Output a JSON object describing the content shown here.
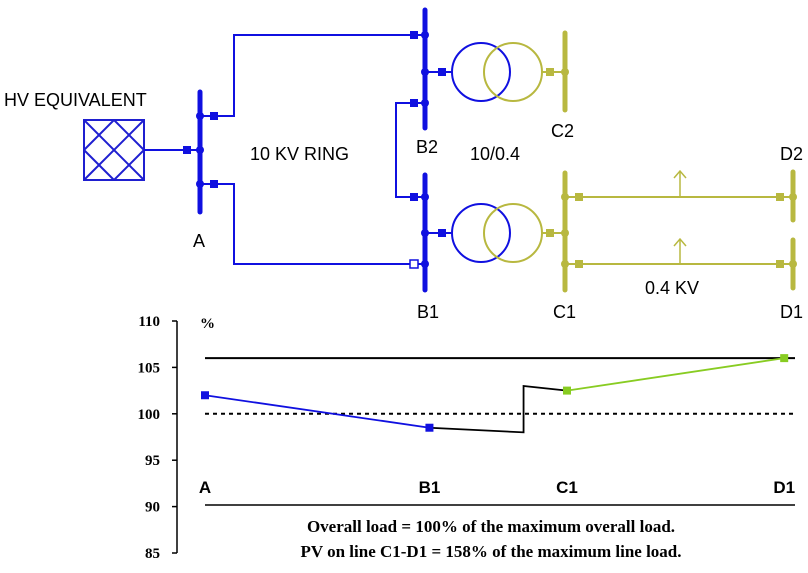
{
  "diagram": {
    "hv_label": "HV EQUIVALENT",
    "ring_label": "10 KV RING",
    "transformer_label": "10/0.4",
    "lv_label": "0.4 KV",
    "buses": {
      "A": "A",
      "B1": "B1",
      "B2": "B2",
      "C1": "C1",
      "C2": "C2",
      "D1": "D1",
      "D2": "D2"
    },
    "colors": {
      "mv": "#1010e0",
      "lv": "#b8b840",
      "lv_plot": "#88cc22",
      "source": "#1f1fd0"
    }
  },
  "chart_data": {
    "type": "line",
    "ylabel": "%",
    "ylim": [
      85,
      110
    ],
    "yticks": [
      85,
      90,
      95,
      100,
      105,
      110
    ],
    "categories": [
      "A",
      "B1",
      "C1",
      "D1"
    ],
    "reference_lines": [
      {
        "value": 106,
        "style": "solid"
      },
      {
        "value": 100,
        "style": "dotted"
      }
    ],
    "series": [
      {
        "segment": "mv",
        "points": [
          {
            "x": 0,
            "y": 102
          },
          {
            "x": 0.62,
            "y": 98.5
          }
        ]
      },
      {
        "segment": "transformer",
        "points": [
          {
            "x": 0.62,
            "y": 98.5
          },
          {
            "x": 0.88,
            "y": 98
          },
          {
            "x": 0.88,
            "y": 103
          },
          {
            "x": 1,
            "y": 102.5
          }
        ]
      },
      {
        "segment": "lv",
        "points": [
          {
            "x": 1,
            "y": 102.5
          },
          {
            "x": 1.6,
            "y": 106
          }
        ]
      }
    ],
    "notes": [
      "Overall load = 100% of the maximum overall load.",
      "PV on line C1-D1 = 158% of the maximum line load."
    ]
  }
}
